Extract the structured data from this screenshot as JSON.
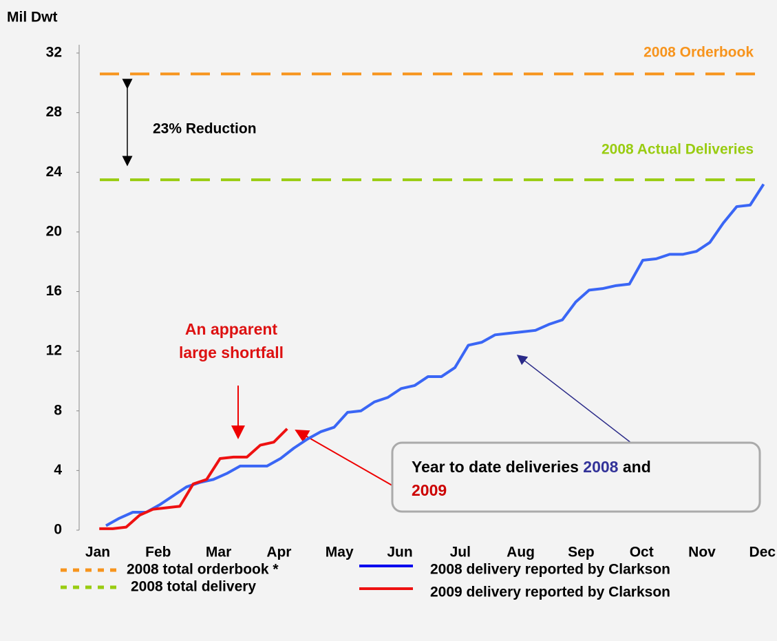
{
  "chart_data": {
    "type": "line",
    "y_label": "Mil Dwt",
    "categories": [
      "Jan",
      "Feb",
      "Mar",
      "Apr",
      "May",
      "Jun",
      "Jul",
      "Aug",
      "Sep",
      "Oct",
      "Nov",
      "Dec"
    ],
    "xlim": [
      0,
      52
    ],
    "ylim": [
      0,
      32
    ],
    "yticks": [
      0,
      4,
      8,
      12,
      16,
      20,
      24,
      28,
      32
    ],
    "series": [
      {
        "name": "2008 delivery reported by Clarkson",
        "color": "#3a66f5",
        "legend_color": "#0000ee",
        "x": [
          2,
          3,
          4,
          5,
          6,
          7,
          8,
          9,
          10,
          11,
          12,
          13,
          14,
          15,
          16,
          17,
          18,
          19,
          20,
          21,
          22,
          23,
          24,
          25,
          26,
          27,
          28,
          29,
          30,
          31,
          32,
          33,
          34,
          35,
          36,
          37,
          38,
          39,
          40,
          41,
          42,
          43,
          44,
          45,
          46,
          47,
          48,
          49,
          50,
          51
        ],
        "values": [
          0.3,
          0.8,
          1.2,
          1.2,
          1.7,
          2.3,
          2.9,
          3.2,
          3.4,
          3.8,
          4.3,
          4.3,
          4.3,
          4.8,
          5.5,
          6.1,
          6.6,
          6.9,
          7.9,
          8.0,
          8.6,
          8.9,
          9.5,
          9.7,
          10.3,
          10.3,
          10.9,
          12.4,
          12.6,
          13.1,
          13.2,
          13.3,
          13.4,
          13.8,
          14.1,
          15.3,
          16.1,
          16.2,
          16.4,
          16.5,
          18.1,
          18.2,
          18.5,
          18.5,
          18.7,
          19.3,
          20.6,
          21.7,
          21.8,
          23.2
        ]
      },
      {
        "name": "2009 delivery reported by Clarkson",
        "color": "#ee1111",
        "legend_color": "#ee1111",
        "x": [
          1.5,
          2.5,
          3.5,
          4.5,
          5.5,
          6.5,
          7.5,
          8.5,
          9.5,
          10.5,
          11.5,
          12.5,
          13.5,
          14.5,
          15.5
        ],
        "values": [
          0.1,
          0.1,
          0.2,
          1.0,
          1.4,
          1.5,
          1.6,
          3.1,
          3.4,
          4.8,
          4.9,
          4.9,
          5.7,
          5.9,
          6.8
        ]
      }
    ],
    "reference_lines": [
      {
        "name": "2008 total orderbook *",
        "label": "2008 Orderbook",
        "value": 30.6,
        "color": "#f7941d"
      },
      {
        "name": "2008 total delivery",
        "label": "2008 Actual Deliveries",
        "value": 23.5,
        "color": "#99cc11"
      }
    ],
    "annotations": {
      "reduction": "23% Reduction",
      "shortfall": [
        "An apparent",
        "large shortfall"
      ],
      "callout": {
        "prefix": "Year to date deliveries",
        "year1": "2008",
        "mid": "and",
        "year2": "2009",
        "year1_color": "#333399",
        "year2_color": "#cc0000"
      }
    }
  }
}
